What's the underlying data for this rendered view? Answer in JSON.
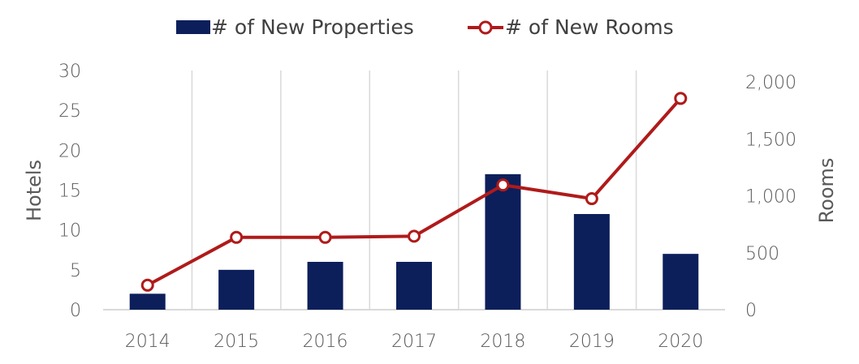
{
  "chart_data": {
    "type": "bar",
    "categories": [
      "2014",
      "2015",
      "2016",
      "2017",
      "2018",
      "2019",
      "2020"
    ],
    "series": [
      {
        "name": "# of New Properties",
        "type": "bar",
        "axis": "left",
        "values": [
          2,
          5,
          6,
          6,
          17,
          12,
          7
        ]
      },
      {
        "name": "# of New Rooms",
        "type": "line",
        "axis": "right",
        "values": [
          215,
          635,
          635,
          645,
          1095,
          975,
          1855
        ]
      }
    ],
    "ylabel": "Hotels",
    "y2label": "Rooms",
    "ylim": [
      0,
      30
    ],
    "y2lim": [
      0,
      2100
    ],
    "yticks": [
      "0",
      "5",
      "10",
      "15",
      "20",
      "25",
      "30"
    ],
    "y2ticks": [
      "0",
      "500",
      "1,000",
      "1,500",
      "2,000"
    ],
    "legend_position": "top",
    "grid": "vertical"
  },
  "colors": {
    "bar": "#0c1f5b",
    "line": "#b01a1a",
    "grid": "#d9d9d9",
    "text": "#595959"
  }
}
